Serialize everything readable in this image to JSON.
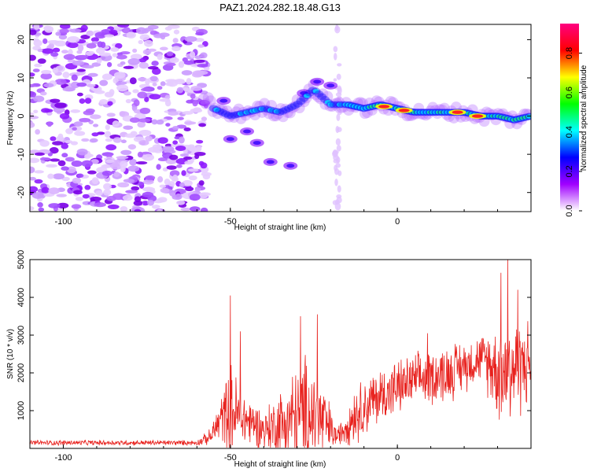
{
  "title": "PAZ1.2024.282.18.48.G13",
  "chart_data": [
    {
      "type": "heatmap",
      "xlabel": "Height of straight line (km)",
      "ylabel": "Frequency (Hz)",
      "xlim": [
        -110,
        40
      ],
      "ylim": [
        -25,
        24
      ],
      "xticks": [
        -100,
        -50,
        0
      ],
      "yticks": [
        -20,
        -10,
        0,
        10,
        20
      ],
      "colorbar": {
        "label": "Normalized spectral amplitude",
        "range": [
          0.0,
          0.95
        ],
        "ticks": [
          "0.0",
          "0.2",
          "0.4",
          "0.6",
          "0.8"
        ],
        "colors": [
          "#ffffff",
          "#a000ff",
          "#0000ff",
          "#00ffff",
          "#00ff00",
          "#ffff00",
          "#ff0000",
          "#ff0080"
        ]
      },
      "signal_track": [
        {
          "x": -58,
          "y": 5
        },
        {
          "x": -55,
          "y": 2
        },
        {
          "x": -50,
          "y": 0
        },
        {
          "x": -45,
          "y": 1
        },
        {
          "x": -40,
          "y": 2
        },
        {
          "x": -35,
          "y": 1
        },
        {
          "x": -30,
          "y": 3
        },
        {
          "x": -25,
          "y": 7
        },
        {
          "x": -20,
          "y": 3
        },
        {
          "x": -15,
          "y": 3
        },
        {
          "x": -10,
          "y": 2
        },
        {
          "x": -5,
          "y": 3
        },
        {
          "x": 0,
          "y": 2
        },
        {
          "x": 5,
          "y": 1
        },
        {
          "x": 10,
          "y": 1
        },
        {
          "x": 15,
          "y": 1
        },
        {
          "x": 20,
          "y": 1
        },
        {
          "x": 25,
          "y": 0
        },
        {
          "x": 30,
          "y": 0
        },
        {
          "x": 35,
          "y": -1
        },
        {
          "x": 40,
          "y": 0
        }
      ],
      "peaks": [
        {
          "x": -4,
          "y": 2.5,
          "value": 0.9
        },
        {
          "x": 2,
          "y": 1.5,
          "value": 0.85
        },
        {
          "x": 18,
          "y": 1.0,
          "value": 0.9
        },
        {
          "x": 24,
          "y": 0.0,
          "value": 0.85
        }
      ],
      "noise_region_x": [
        -110,
        -57
      ]
    },
    {
      "type": "line",
      "xlabel": "Height of straight line (km)",
      "ylabel": "SNR (10 * v/v)",
      "xlim": [
        -110,
        40
      ],
      "ylim": [
        0,
        5000
      ],
      "xticks": [
        -100,
        -50,
        0
      ],
      "yticks": [
        1000,
        2000,
        3000,
        4000,
        5000
      ],
      "line_color": "#e8221e",
      "envelope": [
        {
          "x": -110,
          "base": 150,
          "amp": 80
        },
        {
          "x": -60,
          "base": 150,
          "amp": 80
        },
        {
          "x": -56,
          "base": 300,
          "amp": 250
        },
        {
          "x": -52,
          "base": 900,
          "amp": 900
        },
        {
          "x": -50,
          "base": 1000,
          "amp": 1500
        },
        {
          "x": -46,
          "base": 800,
          "amp": 900
        },
        {
          "x": -40,
          "base": 500,
          "amp": 600
        },
        {
          "x": -33,
          "base": 700,
          "amp": 1400
        },
        {
          "x": -27,
          "base": 1000,
          "amp": 1800
        },
        {
          "x": -22,
          "base": 700,
          "amp": 1200
        },
        {
          "x": -18,
          "base": 300,
          "amp": 250
        },
        {
          "x": -13,
          "base": 900,
          "amp": 900
        },
        {
          "x": -5,
          "base": 1400,
          "amp": 900
        },
        {
          "x": 5,
          "base": 1800,
          "amp": 800
        },
        {
          "x": 15,
          "base": 2000,
          "amp": 900
        },
        {
          "x": 25,
          "base": 2400,
          "amp": 700
        },
        {
          "x": 32,
          "base": 2000,
          "amp": 1800
        },
        {
          "x": 40,
          "base": 2300,
          "amp": 1300
        }
      ],
      "spikes": [
        {
          "x": -50,
          "y": 4050
        },
        {
          "x": -47,
          "y": 3100
        },
        {
          "x": -29,
          "y": 3500
        },
        {
          "x": -24,
          "y": 3550
        },
        {
          "x": 9,
          "y": 3050
        },
        {
          "x": 31,
          "y": 4650
        },
        {
          "x": 33,
          "y": 5000
        },
        {
          "x": 36,
          "y": 4200
        }
      ]
    }
  ]
}
